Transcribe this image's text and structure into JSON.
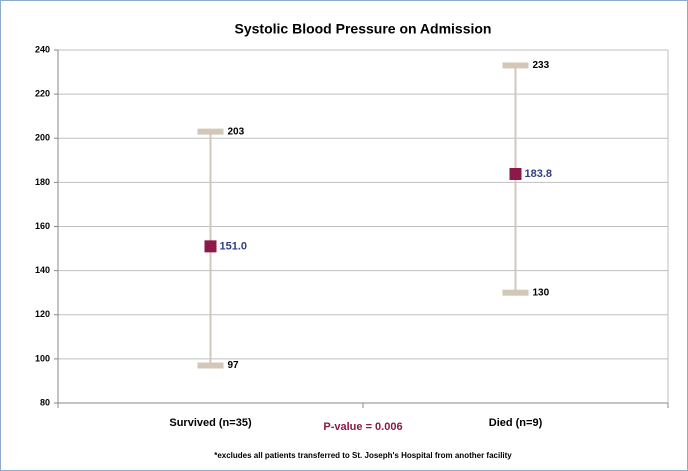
{
  "chart_data": {
    "type": "range",
    "title": "Systolic Blood Pressure on Admission",
    "categories": [
      "Survived (n=35)",
      "Died (n=9)"
    ],
    "high": [
      203,
      233
    ],
    "low": [
      97,
      130
    ],
    "mean": [
      151.0,
      183.8
    ],
    "value_labels": [
      "151.0",
      "183.8"
    ],
    "range_color": "#d3c7b7",
    "mean_color": "#8b1a4a",
    "mean_label_color": "#333d82",
    "ylim": [
      80,
      240
    ],
    "yticks": [
      80,
      100,
      120,
      140,
      160,
      180,
      200,
      220,
      240
    ],
    "grid": true,
    "annotations": [
      "P-value = 0.006"
    ],
    "footnote": "*excludes all patients transferred to St. Joseph's Hospital from another facility"
  }
}
